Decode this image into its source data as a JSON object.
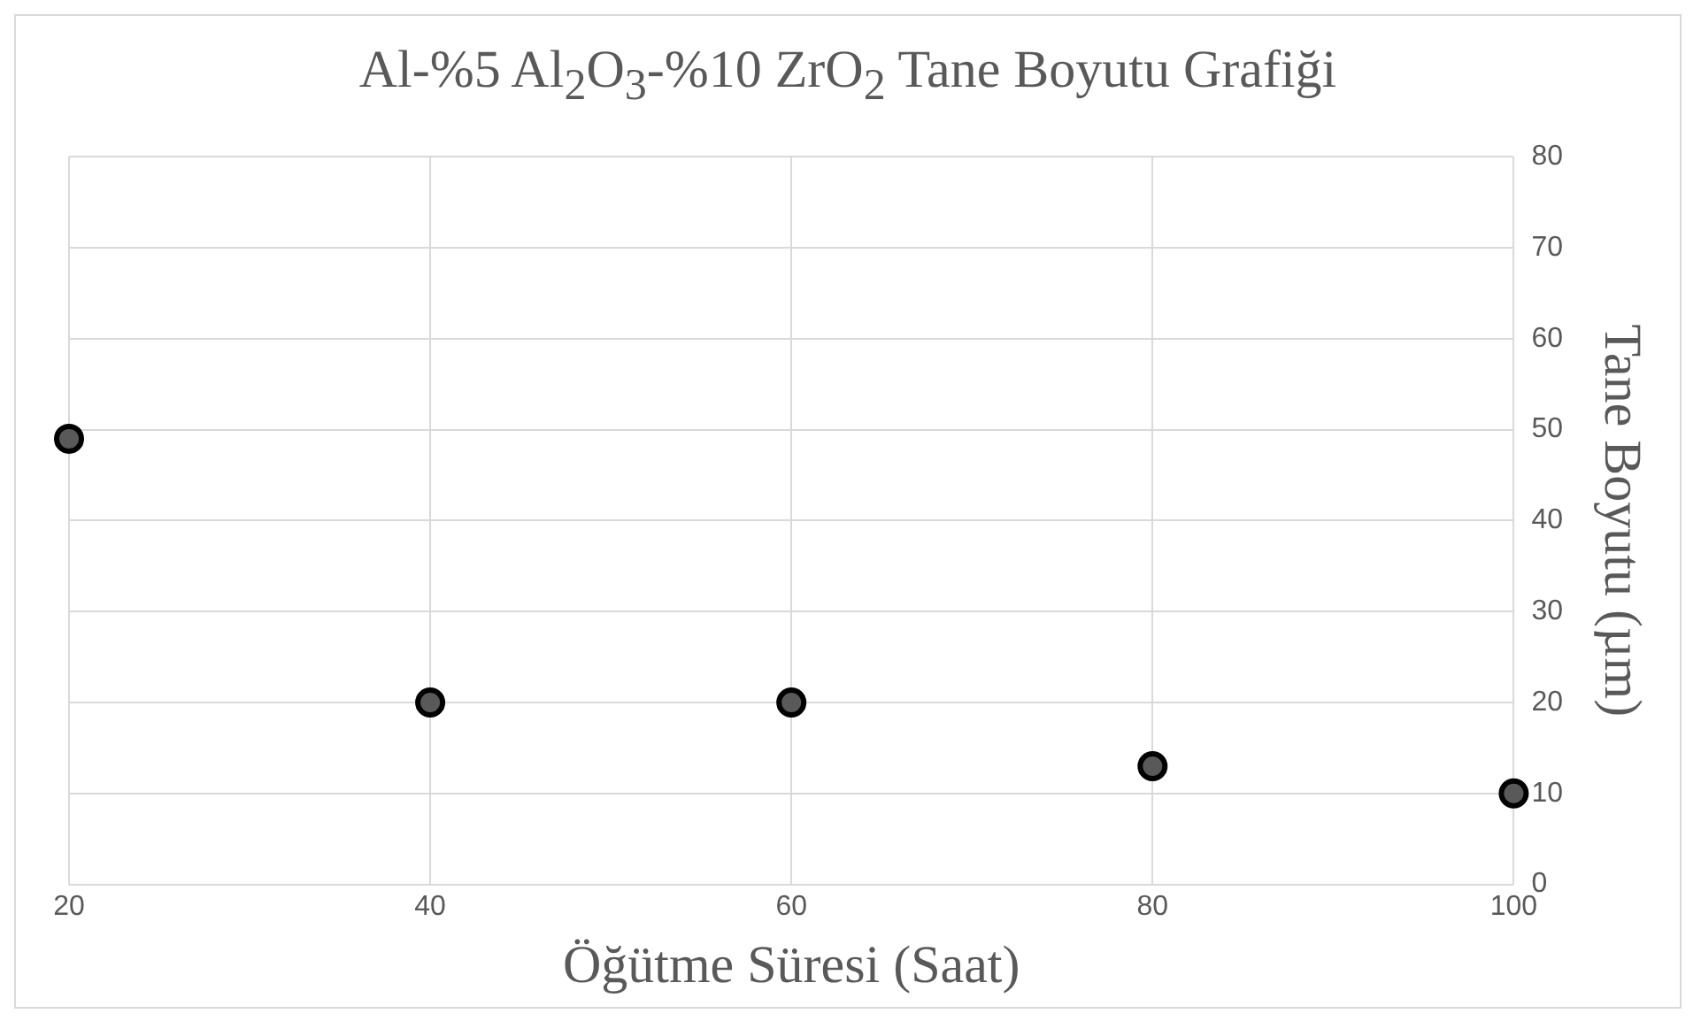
{
  "chart_data": {
    "type": "scatter",
    "title": "Al-%5 Al$_{2}$O$_{3}$-%10 ZrO$_{2}$ Tane Boyutu Grafiği",
    "xlabel": "Öğütme Süresi (Saat)",
    "ylabel": "Tane Boyutu (µm)",
    "x": [
      20,
      40,
      60,
      80,
      100
    ],
    "series": [
      {
        "color": "#595959",
        "values": [
          49,
          20,
          20,
          13,
          10
        ]
      }
    ],
    "xlim": [
      20,
      100
    ],
    "xticks": [
      20,
      40,
      60,
      80,
      100
    ],
    "ylim": [
      0,
      80
    ],
    "yticks": [
      0,
      10,
      20,
      30,
      40,
      50,
      60,
      70,
      80
    ],
    "grid": true,
    "legend": false,
    "marker": "circle"
  }
}
